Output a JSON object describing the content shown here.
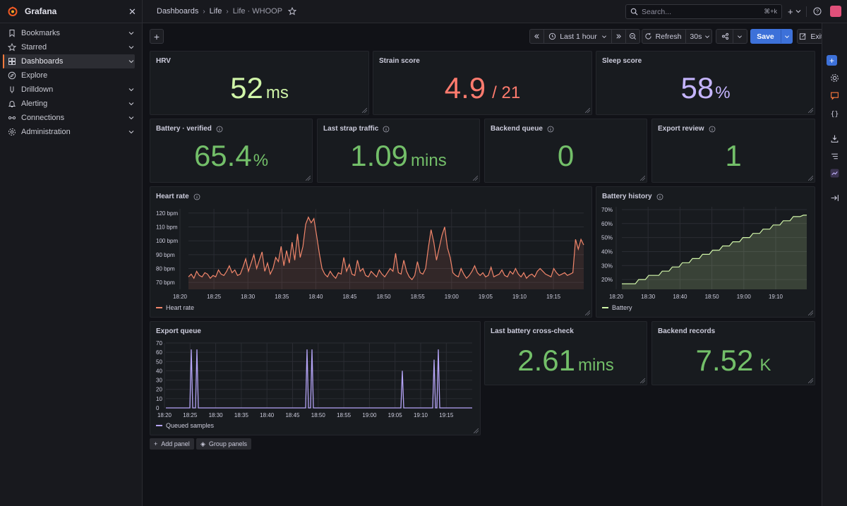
{
  "app": {
    "name": "Grafana"
  },
  "sidebar": {
    "items": [
      {
        "label": "Bookmarks",
        "icon": "bookmark-icon",
        "chevron": true
      },
      {
        "label": "Starred",
        "icon": "star-icon",
        "chevron": true
      },
      {
        "label": "Dashboards",
        "icon": "dashboards-grid-icon",
        "chevron": true,
        "active": true
      },
      {
        "label": "Explore",
        "icon": "compass-icon",
        "chevron": false
      },
      {
        "label": "Drilldown",
        "icon": "drilldown-icon",
        "chevron": true
      },
      {
        "label": "Alerting",
        "icon": "bell-icon",
        "chevron": true
      },
      {
        "label": "Connections",
        "icon": "connections-icon",
        "chevron": true
      },
      {
        "label": "Administration",
        "icon": "gear-icon",
        "chevron": true
      }
    ]
  },
  "breadcrumb": {
    "items": [
      "Dashboards",
      "Life"
    ],
    "current": "Life · WHOOP"
  },
  "search": {
    "placeholder": "Search...",
    "shortcut": "⌘+k"
  },
  "toolbar": {
    "time_range": "Last 1 hour",
    "refresh_label": "Refresh",
    "refresh_interval": "30s",
    "save_label": "Save",
    "exit_label": "Exit edit"
  },
  "panels": {
    "hrv": {
      "title": "HRV",
      "value": "52",
      "unit": "ms",
      "color": "#d0f5a8"
    },
    "strain": {
      "title": "Strain score",
      "value": "4.9",
      "unit": "/ 21",
      "color": "#ff7b6e"
    },
    "sleep": {
      "title": "Sleep score",
      "value": "58",
      "unit": "%",
      "color": "#c5b5ff"
    },
    "battery": {
      "title": "Battery · verified",
      "value": "65.4",
      "unit": "%",
      "color": "#73bf69"
    },
    "strap": {
      "title": "Last strap traffic",
      "value": "1.09",
      "unit": "mins",
      "color": "#73bf69"
    },
    "queue": {
      "title": "Backend queue",
      "value": "0",
      "unit": "",
      "color": "#73bf69"
    },
    "export_review": {
      "title": "Export review",
      "value": "1",
      "unit": "",
      "color": "#73bf69"
    },
    "crosscheck": {
      "title": "Last battery cross-check",
      "value": "2.61",
      "unit": "mins",
      "color": "#73bf69"
    },
    "records": {
      "title": "Backend records",
      "value": "7.52",
      "unit": "K",
      "color": "#73bf69"
    },
    "heart_rate": {
      "title": "Heart rate"
    },
    "battery_history": {
      "title": "Battery history"
    },
    "export_queue": {
      "title": "Export queue"
    }
  },
  "buttons": {
    "add_panel": "Add panel",
    "group_panels": "Group panels"
  },
  "chart_data": [
    {
      "type": "line",
      "name_key": "heart_rate",
      "series": [
        {
          "name": "Heart rate",
          "color": "#f2866b",
          "values": [
            74,
            76,
            73,
            78,
            75,
            74,
            77,
            76,
            73,
            75,
            74,
            79,
            76,
            75,
            78,
            82,
            77,
            79,
            75,
            76,
            81,
            87,
            78,
            84,
            90,
            80,
            86,
            92,
            78,
            84,
            76,
            80,
            88,
            85,
            96,
            82,
            93,
            84,
            99,
            86,
            105,
            88,
            96,
            112,
            117,
            113,
            116,
            104,
            91,
            80,
            76,
            74,
            78,
            75,
            73,
            77,
            76,
            88,
            78,
            83,
            76,
            75,
            86,
            78,
            80,
            75,
            74,
            78,
            76,
            74,
            79,
            76,
            74,
            77,
            80,
            78,
            91,
            77,
            76,
            86,
            78,
            74,
            72,
            75,
            85,
            77,
            76,
            80,
            95,
            108,
            99,
            86,
            95,
            104,
            110,
            95,
            88,
            77,
            75,
            74,
            80,
            76,
            73,
            75,
            78,
            82,
            77,
            75,
            77,
            74,
            75,
            81,
            74,
            75,
            76,
            79,
            75,
            74,
            78,
            76,
            80,
            76,
            74,
            77,
            73,
            75,
            76,
            74,
            78,
            80,
            78,
            76,
            75,
            74,
            80,
            77,
            75,
            76,
            77,
            75,
            76,
            77,
            101,
            94,
            101,
            97
          ]
        }
      ],
      "x_ticks": [
        "18:20",
        "18:25",
        "18:30",
        "18:35",
        "18:40",
        "18:45",
        "18:50",
        "18:55",
        "19:00",
        "19:05",
        "19:10",
        "19:15"
      ],
      "y_ticks": [
        "70 bpm",
        "80 bpm",
        "90 bpm",
        "100 bpm",
        "110 bpm",
        "120 bpm"
      ],
      "ylim": [
        65,
        123
      ],
      "legend": "bottom-left"
    },
    {
      "type": "line",
      "name_key": "battery_history",
      "series": [
        {
          "name": "Battery",
          "color": "#d0f5a8",
          "values": [
            17,
            17,
            17,
            17,
            17,
            20,
            20,
            20,
            23,
            23,
            23,
            23,
            26,
            26,
            26,
            29,
            29,
            29,
            32,
            32,
            32,
            35,
            35,
            35,
            38,
            38,
            38,
            41,
            41,
            41,
            44,
            44,
            44,
            47,
            47,
            47,
            50,
            50,
            50,
            53,
            53,
            53,
            56,
            56,
            56,
            59,
            59,
            59,
            62,
            62,
            62,
            65,
            65,
            65,
            66,
            66
          ]
        }
      ],
      "x_ticks": [
        "18:20",
        "18:30",
        "18:40",
        "18:50",
        "19:00",
        "19:10"
      ],
      "y_ticks": [
        "20%",
        "30%",
        "40%",
        "50%",
        "60%",
        "70%"
      ],
      "ylim": [
        13,
        72
      ],
      "legend": "bottom-left"
    },
    {
      "type": "line",
      "name_key": "export_queue",
      "series": [
        {
          "name": "Queued samples",
          "color": "#b5a4f7",
          "values": [
            0,
            0,
            0,
            0,
            0,
            0,
            0,
            0,
            0,
            0,
            0,
            0,
            0,
            0,
            0,
            0,
            0,
            0,
            0,
            0,
            0,
            0,
            0,
            0,
            0,
            0,
            0,
            0,
            0,
            0,
            0,
            0,
            0,
            0,
            0,
            0,
            0,
            0,
            0,
            0,
            0,
            0,
            0,
            0,
            0,
            0,
            0,
            0,
            0,
            0,
            0,
            0,
            0,
            0,
            0,
            0,
            0,
            0,
            0,
            0,
            0,
            0,
            0,
            0,
            0,
            0,
            0,
            0,
            0,
            0,
            0,
            0,
            0,
            0,
            0,
            0,
            0,
            0,
            0,
            0,
            0,
            0,
            0,
            0,
            0,
            0,
            0,
            0,
            0,
            0,
            0,
            0,
            0,
            0,
            0,
            0,
            0,
            0,
            0,
            0,
            0,
            0,
            0,
            0,
            0,
            0,
            0,
            0,
            0,
            0,
            0,
            0,
            0,
            0,
            0,
            0,
            0,
            0,
            0,
            0,
            0,
            0,
            0,
            0,
            0,
            0,
            0,
            0,
            0,
            0,
            0,
            0,
            0,
            0,
            0,
            0,
            0,
            0,
            0,
            0,
            0,
            0,
            0,
            0,
            0,
            0,
            0,
            0,
            0,
            0,
            0,
            0,
            0,
            0,
            0,
            0,
            0,
            0,
            0,
            0,
            0,
            0,
            0,
            0,
            0,
            0,
            0,
            0,
            0,
            0,
            0,
            0,
            0,
            0,
            0,
            0,
            0,
            0,
            0,
            0,
            0,
            0,
            0,
            0,
            0,
            0,
            0,
            0,
            0,
            0,
            0,
            0,
            0,
            0,
            0,
            0,
            0,
            0,
            0,
            0,
            0,
            0,
            0,
            0,
            0,
            0,
            0,
            0,
            0,
            0,
            0,
            0,
            0,
            0,
            0,
            0,
            0,
            0,
            0,
            0,
            0,
            0,
            0,
            0,
            0,
            0,
            0,
            0,
            0,
            0,
            0,
            0,
            0,
            0,
            0,
            0,
            0,
            0,
            0,
            0,
            0,
            0,
            0,
            0,
            0,
            0,
            0,
            0,
            0,
            0,
            0,
            0,
            0,
            0,
            0,
            0,
            0,
            0,
            0,
            0,
            0,
            0,
            0
          ]
        }
      ],
      "spikes": [
        [
          18.4,
          63
        ],
        [
          18.45,
          63
        ],
        [
          18.8,
          63
        ],
        [
          18.84,
          63
        ],
        [
          19.13,
          40
        ],
        [
          19.2,
          52
        ],
        [
          19.23,
          63
        ]
      ],
      "x_ticks": [
        "18:20",
        "18:25",
        "18:30",
        "18:35",
        "18:40",
        "18:45",
        "18:50",
        "18:55",
        "19:00",
        "19:05",
        "19:10",
        "19:15"
      ],
      "y_ticks": [
        "0",
        "10",
        "20",
        "30",
        "40",
        "50",
        "60",
        "70"
      ],
      "ylim": [
        0,
        70
      ],
      "legend": "bottom-left"
    }
  ]
}
